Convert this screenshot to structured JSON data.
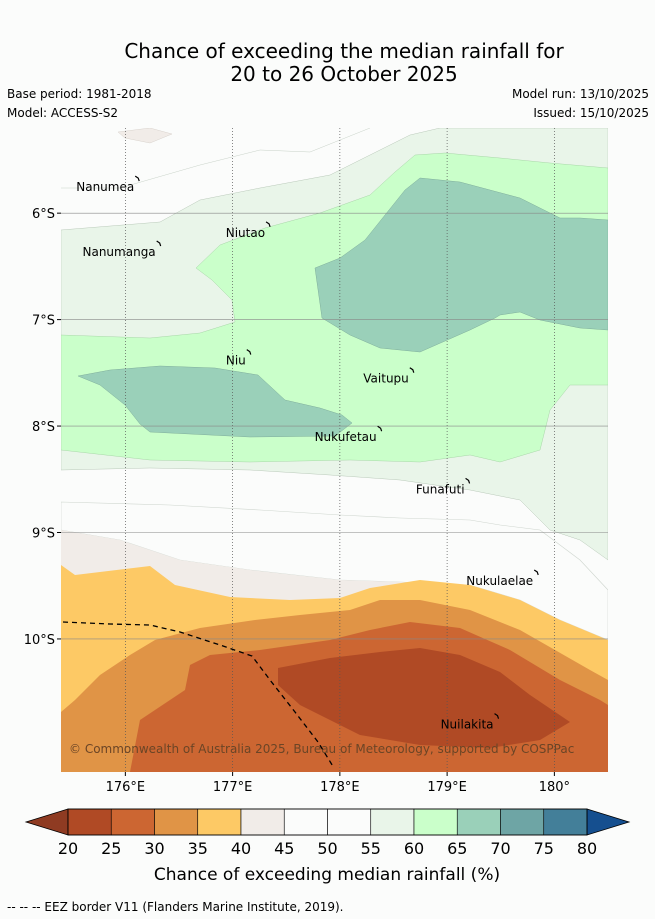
{
  "title": {
    "line1": "Chance of exceeding the median rainfall for",
    "line2": "20 to 26 October 2025"
  },
  "meta": {
    "base_period": "Base period: 1981-2018",
    "model": "Model: ACCESS-S2",
    "model_run": "Model run: 13/10/2025",
    "issued": "Issued: 15/10/2025"
  },
  "map": {
    "lon_range": [
      175.4,
      180.5
    ],
    "lat_range": [
      -11.25,
      -5.2
    ],
    "lon_ticks": [
      {
        "value": 176,
        "label": "176°E"
      },
      {
        "value": 177,
        "label": "177°E"
      },
      {
        "value": 178,
        "label": "178°E"
      },
      {
        "value": 179,
        "label": "179°E"
      },
      {
        "value": 180,
        "label": "180°"
      }
    ],
    "lat_ticks": [
      {
        "value": -6,
        "label": "6°S"
      },
      {
        "value": -7,
        "label": "7°S"
      },
      {
        "value": -8,
        "label": "8°S"
      },
      {
        "value": -9,
        "label": "9°S"
      },
      {
        "value": -10,
        "label": "10°S"
      }
    ],
    "islands": [
      {
        "name": "Nanumea",
        "lon": 176.12,
        "lat": -5.68
      },
      {
        "name": "Nanumanga",
        "lon": 176.32,
        "lat": -6.29
      },
      {
        "name": "Niutao",
        "lon": 177.34,
        "lat": -6.11
      },
      {
        "name": "Niu",
        "lon": 177.16,
        "lat": -7.31
      },
      {
        "name": "Vaitupu",
        "lon": 178.68,
        "lat": -7.48
      },
      {
        "name": "Nukufetau",
        "lon": 178.38,
        "lat": -8.03
      },
      {
        "name": "Funafuti",
        "lon": 179.2,
        "lat": -8.52
      },
      {
        "name": "Nukulaelae",
        "lon": 179.84,
        "lat": -9.38
      },
      {
        "name": "Nuilakita",
        "lon": 179.47,
        "lat": -10.73
      }
    ],
    "copyright": "© Commonwealth of Australia 2025, Bureau of Meteorology, supported by COSPPac"
  },
  "legend": {
    "bounds": [
      20,
      25,
      30,
      35,
      40,
      45,
      50,
      55,
      60,
      65,
      70,
      75,
      80
    ],
    "colors": [
      "#b04a25",
      "#cc6632",
      "#e09446",
      "#fdc965",
      "#f1ece8",
      "#fbfcfb",
      "#fbfcfb",
      "#e9f5e9",
      "#caffca",
      "#9ad0b9",
      "#6ea5a5",
      "#437f99"
    ],
    "under_color": "#8f3b22",
    "over_color": "#154f8f",
    "label": "Chance of exceeding median rainfall (%)"
  },
  "footer": "-- -- -- EEZ border V11 (Flanders Marine Institute, 2019)."
}
